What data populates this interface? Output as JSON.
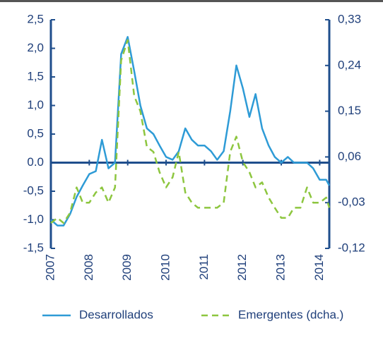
{
  "chart_data": {
    "type": "line",
    "x": [
      2007,
      2007.17,
      2007.33,
      2007.5,
      2007.67,
      2007.83,
      2008,
      2008.17,
      2008.33,
      2008.5,
      2008.67,
      2008.83,
      2009,
      2009.17,
      2009.33,
      2009.5,
      2009.67,
      2009.83,
      2010,
      2010.17,
      2010.33,
      2010.5,
      2010.67,
      2010.83,
      2011,
      2011.17,
      2011.33,
      2011.5,
      2011.67,
      2011.83,
      2012,
      2012.17,
      2012.33,
      2012.5,
      2012.67,
      2012.83,
      2013,
      2013.17,
      2013.33,
      2013.5,
      2013.67,
      2013.83,
      2014,
      2014.17,
      2014.25
    ],
    "series": [
      {
        "name": "Desarrollados",
        "color": "#2e9bd6",
        "dashed": false,
        "values": [
          -1.0,
          -1.1,
          -1.1,
          -0.9,
          -0.6,
          -0.4,
          -0.2,
          -0.15,
          0.4,
          -0.1,
          0.0,
          1.9,
          2.2,
          1.6,
          1.0,
          0.6,
          0.5,
          0.3,
          0.1,
          0.05,
          0.2,
          0.6,
          0.4,
          0.3,
          0.3,
          0.2,
          0.05,
          0.2,
          0.9,
          1.7,
          1.3,
          0.8,
          1.2,
          0.6,
          0.3,
          0.1,
          0.0,
          0.1,
          0.0,
          0.0,
          0.0,
          -0.1,
          -0.3,
          -0.3,
          -0.4
        ]
      },
      {
        "name": "Emergentes (dcha.)",
        "color": "#8dc63f",
        "dashed": true,
        "axis": "y2",
        "values": [
          -0.07,
          -0.06,
          -0.07,
          -0.05,
          0.0,
          -0.03,
          -0.03,
          -0.01,
          0.0,
          -0.03,
          0.0,
          0.25,
          0.29,
          0.18,
          0.15,
          0.08,
          0.07,
          0.03,
          0.0,
          0.02,
          0.07,
          -0.01,
          -0.03,
          -0.04,
          -0.04,
          -0.04,
          -0.04,
          -0.03,
          0.07,
          0.1,
          0.05,
          0.03,
          0.0,
          0.01,
          -0.02,
          -0.04,
          -0.06,
          -0.06,
          -0.04,
          -0.04,
          0.0,
          -0.03,
          -0.03,
          -0.02,
          -0.04
        ]
      }
    ],
    "xlim": [
      2007,
      2014.25
    ],
    "xticks": [
      2007,
      2008,
      2009,
      2010,
      2011,
      2012,
      2013,
      2014
    ],
    "ylim": [
      -1.5,
      2.5
    ],
    "yticks": [
      {
        "value": 2.5,
        "label": "2,5"
      },
      {
        "value": 2,
        "label": "2,0"
      },
      {
        "value": 1.5,
        "label": "1,5"
      },
      {
        "value": 1,
        "label": "1,0"
      },
      {
        "value": 0.5,
        "label": "0,5"
      },
      {
        "value": 0,
        "label": "0.0"
      },
      {
        "value": -0.5,
        "label": "-0,5"
      },
      {
        "value": -1,
        "label": "-1,0"
      },
      {
        "value": -1.5,
        "label": "-1,5"
      }
    ],
    "y2lim": [
      -0.12,
      0.33
    ],
    "y2ticks": [
      {
        "value": 0.33,
        "label": "0,33"
      },
      {
        "value": 0.24,
        "label": "0,24"
      },
      {
        "value": 0.15,
        "label": "0,15"
      },
      {
        "value": 0.06,
        "label": "0,06"
      },
      {
        "value": -0.03,
        "label": "-0,03"
      },
      {
        "value": -0.12,
        "label": "-0,12"
      }
    ],
    "legend": "bottom"
  }
}
